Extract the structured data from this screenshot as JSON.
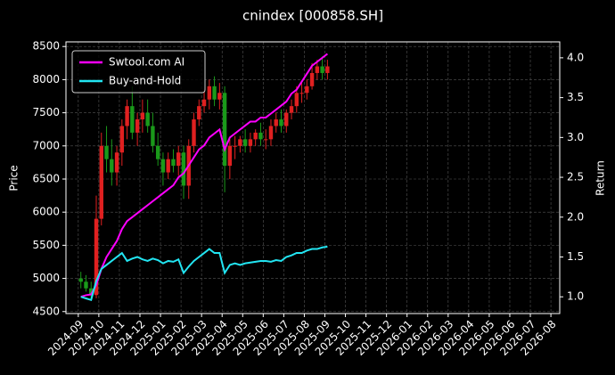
{
  "chart_data": {
    "type": "candlestick",
    "title": "cnindex [000858.SH]",
    "ylabel": "Price",
    "y2label": "Return",
    "x": [
      "2024-09",
      "2024-09",
      "2024-09",
      "2024-09",
      "2024-10",
      "2024-10",
      "2024-10",
      "2024-10",
      "2024-11",
      "2024-11",
      "2024-11",
      "2024-11",
      "2024-12",
      "2024-12",
      "2024-12",
      "2024-12",
      "2025-01",
      "2025-01",
      "2025-01",
      "2025-01",
      "2025-02",
      "2025-02",
      "2025-02",
      "2025-02",
      "2025-03",
      "2025-03",
      "2025-03",
      "2025-03",
      "2025-04",
      "2025-04",
      "2025-04",
      "2025-04",
      "2025-05",
      "2025-05",
      "2025-05",
      "2025-05",
      "2025-06",
      "2025-06",
      "2025-06",
      "2025-06",
      "2025-07",
      "2025-07",
      "2025-07",
      "2025-07",
      "2025-08",
      "2025-08",
      "2025-08",
      "2025-08",
      "2025-09"
    ],
    "open": [
      5000,
      4950,
      4850,
      4750,
      5900,
      7000,
      6800,
      6600,
      6900,
      7300,
      7600,
      7200,
      7400,
      7500,
      7300,
      7000,
      6800,
      6600,
      6800,
      6700,
      6900,
      6400,
      7000,
      7400,
      7600,
      7700,
      7900,
      7700,
      7800,
      6700,
      7000,
      7000,
      7100,
      7000,
      7100,
      7200,
      7100,
      7100,
      7300,
      7400,
      7300,
      7500,
      7600,
      7800,
      7800,
      7900,
      8100,
      8200,
      8100
    ],
    "high": [
      5100,
      5050,
      4950,
      6250,
      7200,
      7300,
      7100,
      7000,
      7400,
      7700,
      7900,
      7500,
      7700,
      7700,
      7500,
      7200,
      6900,
      6900,
      6950,
      7000,
      7000,
      7100,
      7500,
      7700,
      7850,
      8000,
      8050,
      7950,
      7900,
      7100,
      7150,
      7150,
      7250,
      7200,
      7250,
      7350,
      7250,
      7400,
      7500,
      7550,
      7550,
      7700,
      7900,
      7950,
      8000,
      8250,
      8300,
      8350,
      8300
    ],
    "low": [
      4850,
      4800,
      4700,
      4700,
      5800,
      6600,
      6400,
      6400,
      6700,
      7100,
      7100,
      7000,
      7200,
      7200,
      6900,
      6700,
      6400,
      6500,
      6600,
      6550,
      6200,
      6200,
      6900,
      7300,
      7500,
      7550,
      7600,
      7550,
      6300,
      6500,
      6800,
      6900,
      6900,
      6900,
      7000,
      7000,
      6950,
      7000,
      7200,
      7200,
      7200,
      7400,
      7500,
      7650,
      7700,
      7850,
      8000,
      8000,
      8000
    ],
    "close": [
      4950,
      4850,
      4750,
      5900,
      7000,
      6800,
      6600,
      6900,
      7300,
      7600,
      7200,
      7400,
      7500,
      7300,
      7000,
      6800,
      6600,
      6800,
      6700,
      6900,
      6400,
      7000,
      7400,
      7600,
      7700,
      7900,
      7700,
      7800,
      6700,
      7000,
      7000,
      7100,
      7000,
      7100,
      7200,
      7100,
      7100,
      7300,
      7400,
      7300,
      7500,
      7600,
      7800,
      7800,
      7900,
      8100,
      8200,
      8100,
      8200
    ],
    "up_color": "#e02020",
    "down_color": "#1a9a1a",
    "series": [
      {
        "name": "Swtool.com AI",
        "color": "#ff00ff",
        "axis": "y2",
        "values": [
          1.0,
          1.02,
          1.03,
          1.15,
          1.35,
          1.5,
          1.6,
          1.7,
          1.85,
          1.95,
          2.0,
          2.05,
          2.1,
          2.15,
          2.2,
          2.25,
          2.3,
          2.35,
          2.4,
          2.5,
          2.55,
          2.65,
          2.75,
          2.85,
          2.9,
          3.0,
          3.05,
          3.1,
          2.85,
          3.0,
          3.05,
          3.1,
          3.15,
          3.2,
          3.2,
          3.25,
          3.25,
          3.3,
          3.35,
          3.4,
          3.45,
          3.55,
          3.6,
          3.7,
          3.8,
          3.9,
          3.95,
          4.0,
          4.05
        ]
      },
      {
        "name": "Buy-and-Hold",
        "color": "#22e5f2",
        "axis": "y2",
        "values": [
          1.0,
          0.98,
          0.96,
          1.2,
          1.35,
          1.4,
          1.45,
          1.5,
          1.55,
          1.45,
          1.48,
          1.5,
          1.47,
          1.45,
          1.48,
          1.46,
          1.42,
          1.45,
          1.44,
          1.47,
          1.3,
          1.38,
          1.45,
          1.5,
          1.55,
          1.6,
          1.55,
          1.55,
          1.3,
          1.4,
          1.42,
          1.4,
          1.42,
          1.43,
          1.44,
          1.45,
          1.45,
          1.44,
          1.46,
          1.45,
          1.5,
          1.52,
          1.55,
          1.55,
          1.58,
          1.6,
          1.6,
          1.62,
          1.63
        ]
      }
    ],
    "xlim": [
      "2024-09",
      "2026-08"
    ],
    "xticks": [
      "2024-09",
      "2024-10",
      "2024-11",
      "2024-12",
      "2025-01",
      "2025-02",
      "2025-03",
      "2025-04",
      "2025-05",
      "2025-06",
      "2025-07",
      "2025-08",
      "2025-09",
      "2025-10",
      "2025-11",
      "2025-12",
      "2026-01",
      "2026-02",
      "2026-03",
      "2026-04",
      "2026-05",
      "2026-06",
      "2026-07",
      "2026-08"
    ],
    "ylim": [
      4470,
      8570
    ],
    "yticks": [
      4500,
      5000,
      5500,
      6000,
      6500,
      7000,
      7500,
      8000,
      8500
    ],
    "y2lim": [
      0.79,
      4.2
    ],
    "y2ticks": [
      {
        "value": 1,
        "label": "1.0"
      },
      1.5,
      {
        "value": 2,
        "label": "2.0"
      },
      2.5,
      {
        "value": 3,
        "label": "3.0"
      },
      3.5,
      {
        "value": 4,
        "label": "4.0"
      }
    ],
    "grid": true,
    "legend": "upper left"
  }
}
